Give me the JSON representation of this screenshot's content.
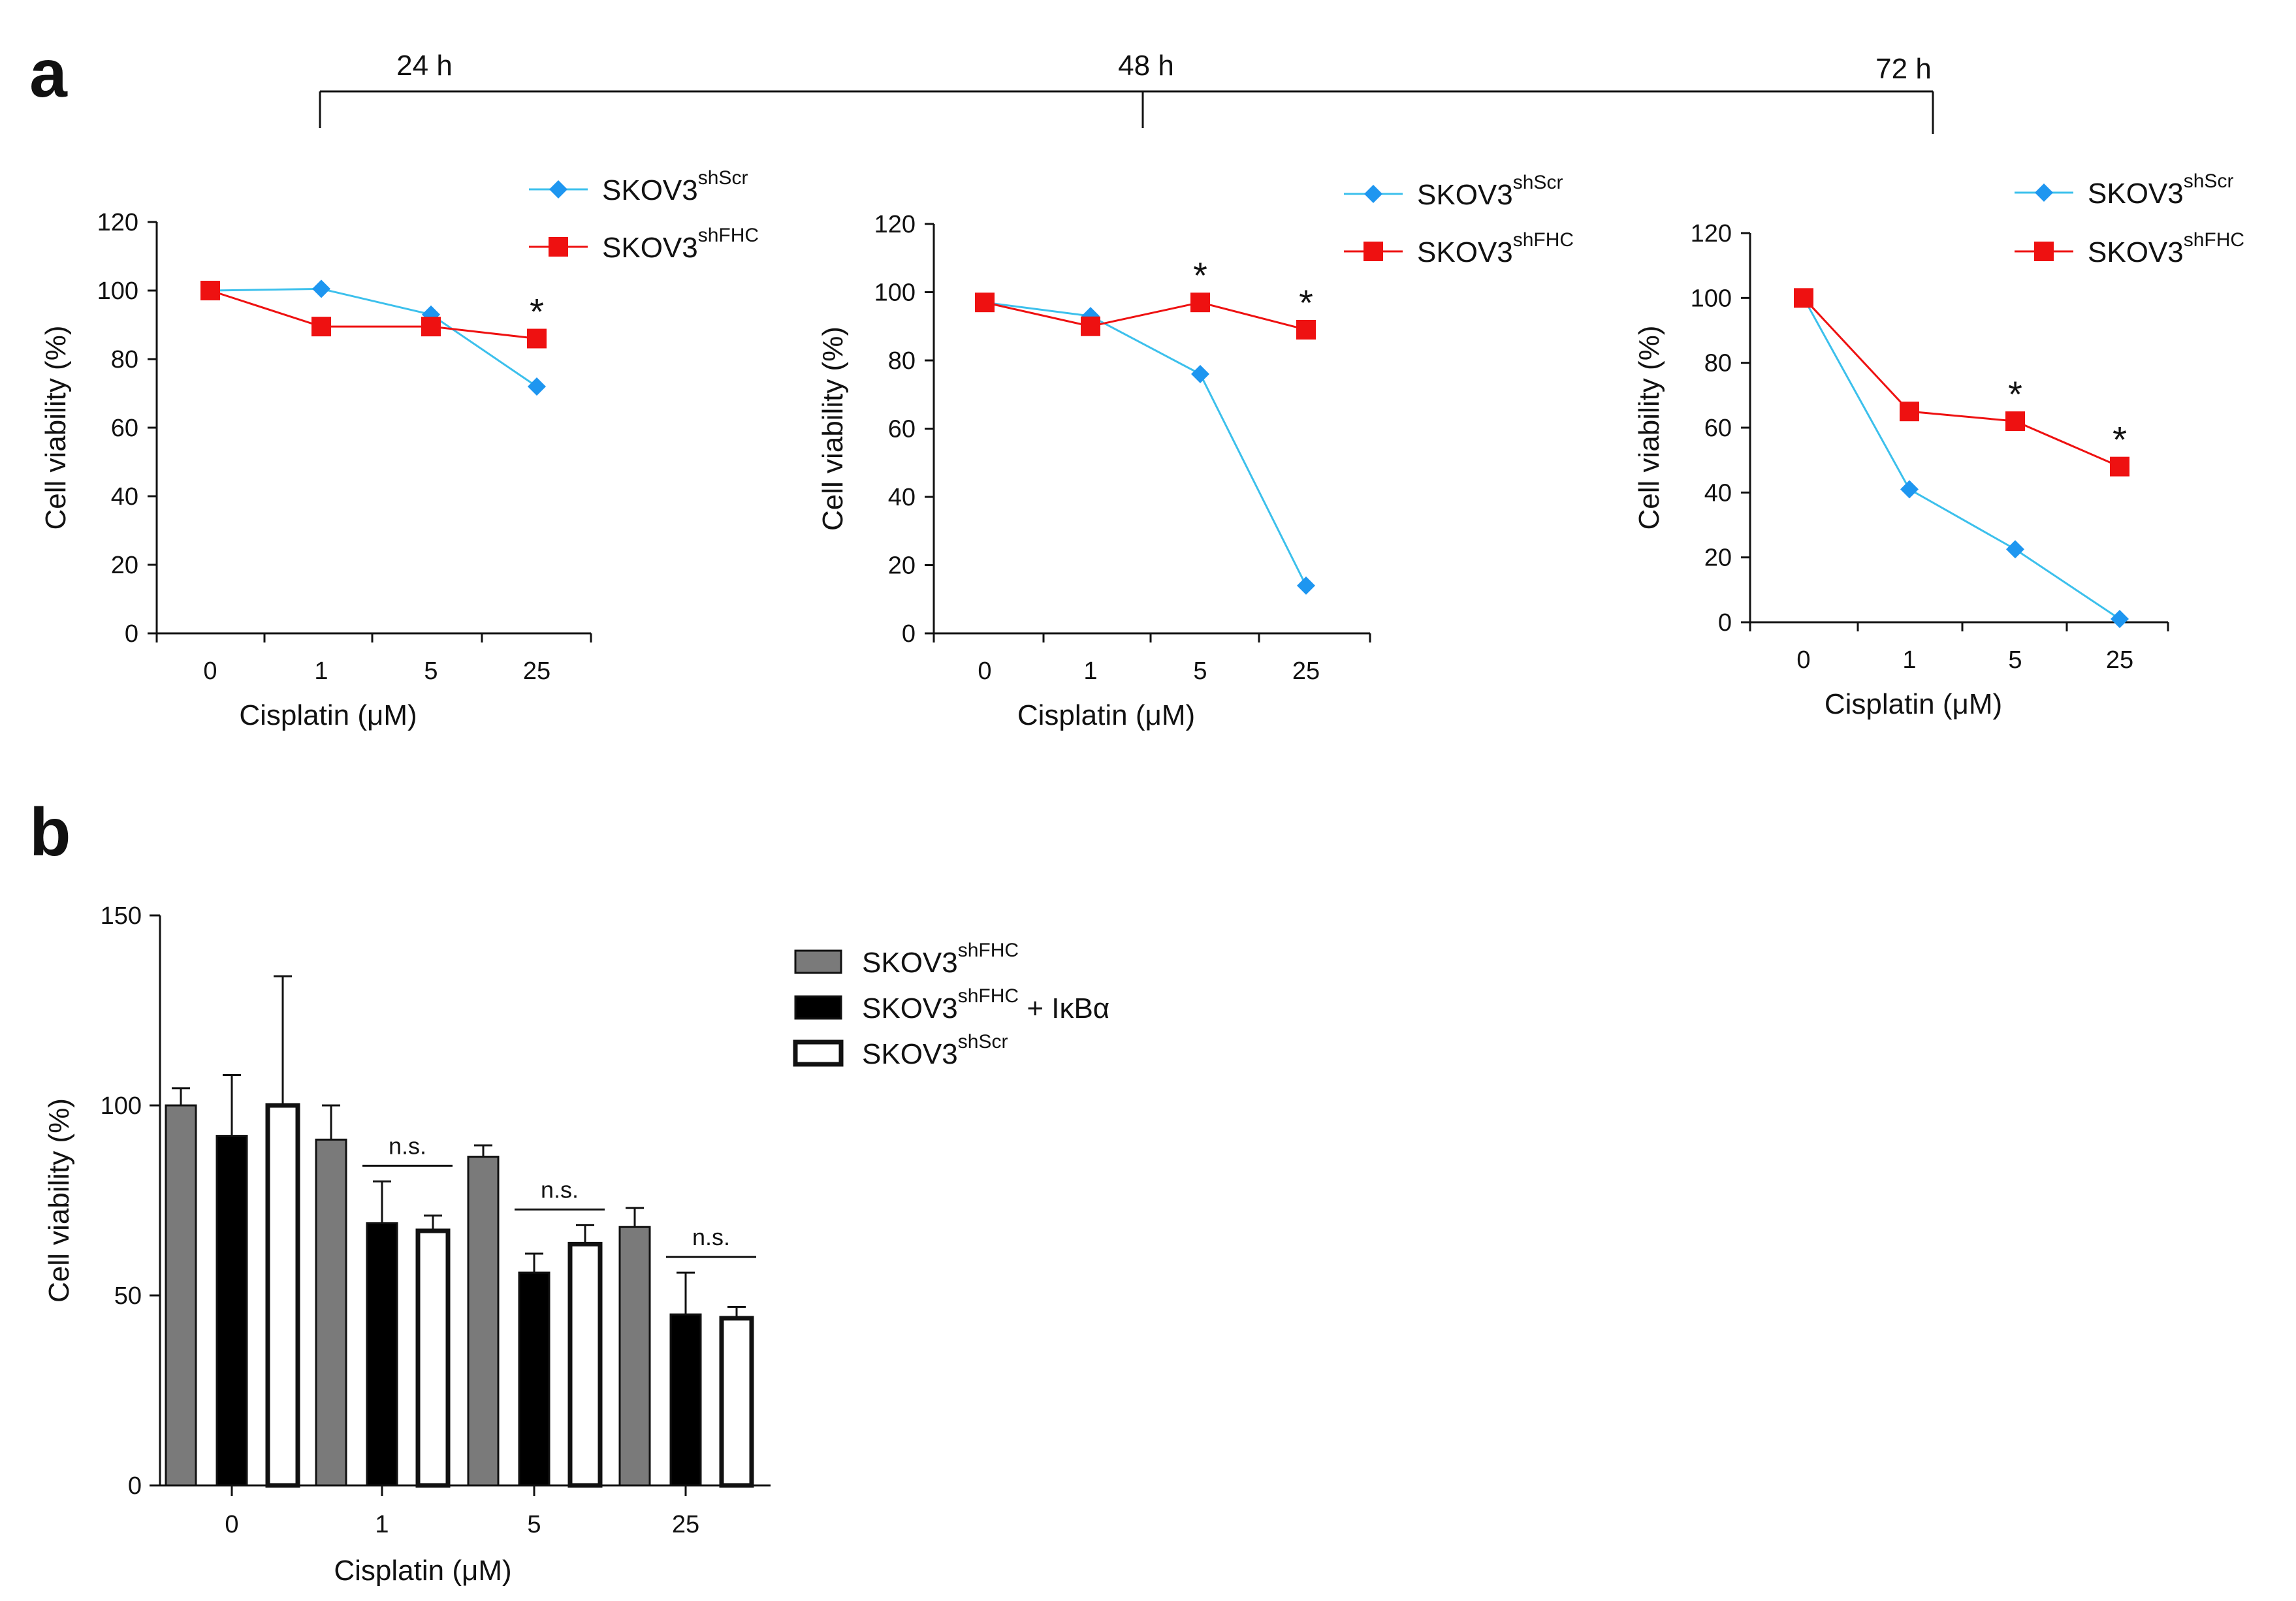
{
  "panel_labels": {
    "a": "a",
    "b": "b"
  },
  "timeline": {
    "labels": [
      "24 h",
      "48 h",
      "72 h"
    ]
  },
  "colors": {
    "shScr": "#1e96f0",
    "shScrLine": "#3cc0ec",
    "shFHC": "#ee1111",
    "grey": "#7a7a7a",
    "black": "#000000",
    "white": "#ffffff"
  },
  "chart_data": [
    {
      "id": "a1",
      "type": "line",
      "timepoint": "24 h",
      "categories": [
        "0",
        "1",
        "5",
        "25"
      ],
      "ylabel": "Cell viability (%)",
      "xlabel": "Cisplatin (μM)",
      "ylim": [
        0,
        120
      ],
      "yticks": [
        "0",
        "20",
        "40",
        "60",
        "80",
        "100",
        "120"
      ],
      "series": [
        {
          "name": "SKOV3",
          "sup": "shScr",
          "marker": "diamond",
          "values": [
            100,
            100.5,
            93,
            72
          ]
        },
        {
          "name": "SKOV3",
          "sup": "shFHC",
          "marker": "square",
          "values": [
            100,
            89.5,
            89.5,
            86
          ]
        }
      ],
      "significance": [
        "",
        "",
        "",
        "*"
      ]
    },
    {
      "id": "a2",
      "type": "line",
      "timepoint": "48 h",
      "categories": [
        "0",
        "1",
        "5",
        "25"
      ],
      "ylabel": "Cell viability (%)",
      "xlabel": "Cisplatin (μM)",
      "ylim": [
        0,
        120
      ],
      "yticks": [
        "0",
        "20",
        "40",
        "60",
        "80",
        "100",
        "120"
      ],
      "series": [
        {
          "name": "SKOV3",
          "sup": "shScr",
          "marker": "diamond",
          "values": [
            97,
            93,
            76,
            14
          ]
        },
        {
          "name": "SKOV3",
          "sup": "shFHC",
          "marker": "square",
          "values": [
            97,
            90,
            97,
            89
          ]
        }
      ],
      "significance": [
        "",
        "",
        "*",
        "*"
      ]
    },
    {
      "id": "a3",
      "type": "line",
      "timepoint": "72 h",
      "categories": [
        "0",
        "1",
        "5",
        "25"
      ],
      "ylabel": "Cell viability (%)",
      "xlabel": "Cisplatin (μM)",
      "ylim": [
        0,
        120
      ],
      "yticks": [
        "0",
        "20",
        "40",
        "60",
        "80",
        "100",
        "120"
      ],
      "series": [
        {
          "name": "SKOV3",
          "sup": "shScr",
          "marker": "diamond",
          "values": [
            100,
            41,
            22.5,
            1
          ]
        },
        {
          "name": "SKOV3",
          "sup": "shFHC",
          "marker": "square",
          "values": [
            100,
            65,
            62,
            48
          ]
        }
      ],
      "significance": [
        "",
        "",
        "*",
        "*"
      ]
    },
    {
      "id": "b",
      "type": "bar",
      "categories": [
        "0",
        "1",
        "5",
        "25"
      ],
      "ylabel": "Cell viability (%)",
      "xlabel": "Cisplatin (μM)",
      "ylim": [
        0,
        150
      ],
      "yticks": [
        "0",
        "50",
        "100",
        "150"
      ],
      "series": [
        {
          "name": "SKOV3",
          "sup": "shFHC",
          "suffix": "",
          "fill": "grey",
          "values": [
            100,
            91,
            86.5,
            68
          ],
          "errors": [
            4.5,
            9,
            3,
            5
          ]
        },
        {
          "name": "SKOV3",
          "sup": "shFHC",
          "suffix": " + IκBα",
          "fill": "black",
          "values": [
            92,
            69,
            56,
            45
          ],
          "errors": [
            16,
            11,
            5,
            11
          ]
        },
        {
          "name": "SKOV3",
          "sup": "shScr",
          "suffix": "",
          "fill": "white",
          "values": [
            100,
            67,
            63.5,
            44
          ],
          "errors": [
            34,
            4,
            5,
            3
          ]
        }
      ],
      "annotations": [
        "",
        "n.s.",
        "n.s.",
        "n.s."
      ]
    }
  ]
}
